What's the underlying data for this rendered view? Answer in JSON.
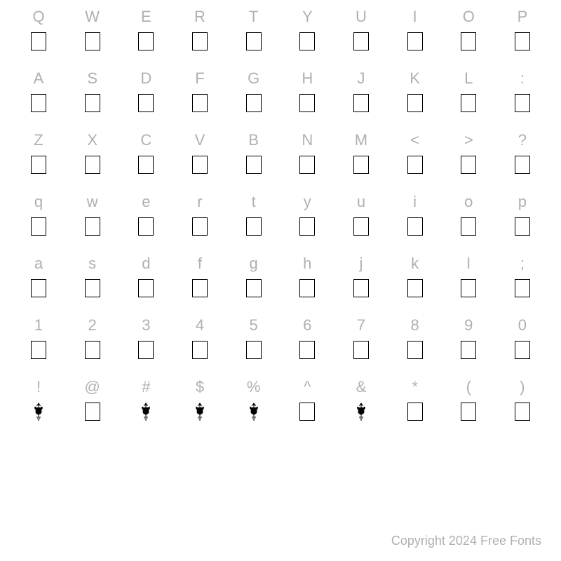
{
  "rows": [
    {
      "labels": [
        "Q",
        "W",
        "E",
        "R",
        "T",
        "Y",
        "U",
        "I",
        "O",
        "P"
      ],
      "glyphs": [
        "box",
        "box",
        "box",
        "box",
        "box",
        "box",
        "box",
        "box",
        "box",
        "box"
      ]
    },
    {
      "labels": [
        "A",
        "S",
        "D",
        "F",
        "G",
        "H",
        "J",
        "K",
        "L",
        ":"
      ],
      "glyphs": [
        "box",
        "box",
        "box",
        "box",
        "box",
        "box",
        "box",
        "box",
        "box",
        "box"
      ]
    },
    {
      "labels": [
        "Z",
        "X",
        "C",
        "V",
        "B",
        "N",
        "M",
        "<",
        ">",
        "?"
      ],
      "glyphs": [
        "box",
        "box",
        "box",
        "box",
        "box",
        "box",
        "box",
        "box",
        "box",
        "box"
      ]
    },
    {
      "labels": [
        "q",
        "w",
        "e",
        "r",
        "t",
        "y",
        "u",
        "i",
        "o",
        "p"
      ],
      "glyphs": [
        "box",
        "box",
        "box",
        "box",
        "box",
        "box",
        "box",
        "box",
        "box",
        "box"
      ]
    },
    {
      "labels": [
        "a",
        "s",
        "d",
        "f",
        "g",
        "h",
        "j",
        "k",
        "l",
        ";"
      ],
      "glyphs": [
        "box",
        "box",
        "box",
        "box",
        "box",
        "box",
        "box",
        "box",
        "box",
        "box"
      ]
    },
    {
      "labels": [
        "1",
        "2",
        "3",
        "4",
        "5",
        "6",
        "7",
        "8",
        "9",
        "0"
      ],
      "glyphs": [
        "box",
        "box",
        "box",
        "box",
        "box",
        "box",
        "box",
        "box",
        "box",
        "box"
      ]
    },
    {
      "labels": [
        "!",
        "@",
        "#",
        "$",
        "%",
        "^",
        "&",
        "*",
        "(",
        ")"
      ],
      "glyphs": [
        "ornament",
        "box",
        "ornament",
        "ornament",
        "ornament",
        "box",
        "ornament",
        "box",
        "box",
        "box"
      ]
    }
  ],
  "copyright": "Copyright 2024 Free Fonts",
  "colors": {
    "label": "#b0b0b0",
    "box_border": "#000000",
    "background": "#ffffff"
  },
  "typography": {
    "label_fontsize": 22,
    "copyright_fontsize": 18
  }
}
